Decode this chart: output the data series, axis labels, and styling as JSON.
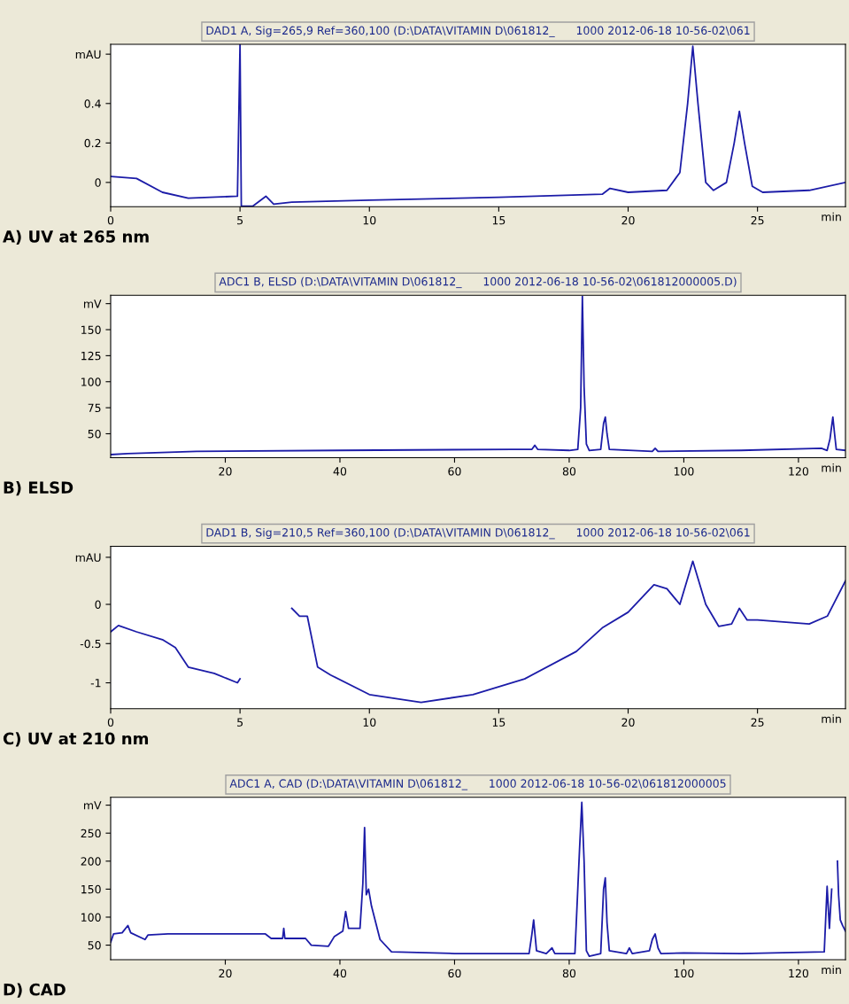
{
  "chart_data": [
    {
      "type": "line",
      "title": "DAD1 A, Sig=265,9 Ref=360,100 (D:\\DATA\\VITAMIN D\\061812_      1000 2012-06-18 10-56-02\\061",
      "xlabel": "min",
      "annotations": [
        "A) UV at 265 nm"
      ],
      "xlim": [
        0,
        28.4
      ],
      "ylim": [
        -0.123,
        0.7
      ],
      "xticks": [
        0,
        5,
        10,
        15,
        20,
        25
      ],
      "yticks": [
        0,
        0.2,
        0.4,
        {
          "value": 0.65,
          "label": "mAU"
        }
      ],
      "grid": false,
      "legend": false,
      "marker": "none",
      "line_style": "solid",
      "series": [
        {
          "color": "#1c1ca8",
          "x": [
            0,
            1,
            2,
            3,
            4.9,
            5.0,
            5.05,
            5.5,
            6.0,
            6.3,
            7,
            10,
            15,
            19,
            19.3,
            20,
            21.5,
            22.0,
            22.3,
            22.5,
            22.7,
            23.0,
            23.3,
            23.8,
            24.1,
            24.3,
            24.5,
            24.8,
            25.2,
            27,
            28.4
          ],
          "values": [
            0.03,
            0.02,
            -0.05,
            -0.08,
            -0.07,
            0.7,
            -0.12,
            -0.12,
            -0.07,
            -0.11,
            -0.1,
            -0.09,
            -0.075,
            -0.06,
            -0.03,
            -0.05,
            -0.04,
            0.05,
            0.4,
            0.69,
            0.4,
            0.0,
            -0.04,
            0.0,
            0.2,
            0.36,
            0.2,
            -0.02,
            -0.05,
            -0.04,
            0.0
          ]
        }
      ]
    },
    {
      "type": "line",
      "title": "ADC1 B, ELSD (D:\\DATA\\VITAMIN D\\061812_      1000 2012-06-18 10-56-02\\061812000005.D)",
      "xlabel": "min",
      "annotations": [
        "B) ELSD"
      ],
      "xlim": [
        0,
        128.2
      ],
      "ylim": [
        27,
        183
      ],
      "xticks": [
        20,
        40,
        60,
        80,
        100,
        120
      ],
      "yticks": [
        50,
        75,
        100,
        125,
        150,
        {
          "value": 175,
          "label": "mV"
        }
      ],
      "grid": false,
      "legend": false,
      "marker": "none",
      "line_style": "solid",
      "series": [
        {
          "color": "#1c1ca8",
          "x": [
            0,
            3,
            15,
            40,
            70,
            73.5,
            74,
            74.5,
            80,
            81.5,
            82,
            82.3,
            82.6,
            83,
            83.5,
            85.5,
            86,
            86.3,
            86.6,
            87,
            94.5,
            95,
            95.5,
            110,
            124,
            125,
            125.5,
            126,
            126.3,
            126.6,
            128.2
          ],
          "values": [
            30,
            31,
            33,
            34,
            35,
            35,
            39,
            35,
            34,
            35,
            75,
            182,
            95,
            40,
            34,
            35,
            60,
            66,
            50,
            35,
            33,
            36,
            33,
            34,
            36,
            34,
            45,
            66,
            50,
            35,
            34
          ]
        }
      ]
    },
    {
      "type": "line",
      "title": "DAD1 B, Sig=210,5 Ref=360,100 (D:\\DATA\\VITAMIN D\\061812_      1000 2012-06-18 10-56-02\\061",
      "xlabel": "min",
      "annotations": [
        "C) UV at 210 nm"
      ],
      "xlim": [
        0,
        28.4
      ],
      "ylim": [
        -1.33,
        0.74
      ],
      "xticks": [
        0,
        5,
        10,
        15,
        20,
        25
      ],
      "yticks": [
        -1,
        -0.5,
        0,
        {
          "value": 0.6,
          "label": "mAU"
        }
      ],
      "grid": false,
      "legend": false,
      "marker": "none",
      "line_style": "solid",
      "series": [
        {
          "color": "#1c1ca8",
          "x": [
            0,
            0.3,
            1,
            2,
            2.5,
            3,
            4,
            4.9,
            5.0,
            5.02,
            5.5,
            6.7,
            7,
            7.3,
            7.6,
            8,
            8.5,
            10,
            12,
            14,
            16,
            18,
            19,
            20,
            21,
            21.5,
            22,
            22.5,
            23,
            23.5,
            24,
            24.3,
            24.6,
            25,
            27,
            27.7,
            28.4
          ],
          "values": [
            -0.35,
            -0.27,
            -0.35,
            -0.45,
            -0.55,
            -0.8,
            -0.88,
            -1.0,
            -0.95,
            null,
            null,
            null,
            -0.05,
            -0.15,
            -0.15,
            -0.8,
            -0.9,
            -1.15,
            -1.25,
            -1.15,
            -0.95,
            -0.6,
            -0.3,
            -0.1,
            0.25,
            0.2,
            0.0,
            0.55,
            0.0,
            -0.28,
            -0.25,
            -0.05,
            -0.2,
            -0.2,
            -0.25,
            -0.15,
            0.3
          ]
        }
      ]
    },
    {
      "type": "line",
      "title": "ADC1 A, CAD (D:\\DATA\\VITAMIN D\\061812_      1000 2012-06-18 10-56-02\\061812000005",
      "xlabel": "min",
      "annotations": [
        "D) CAD"
      ],
      "xlim": [
        0,
        128.2
      ],
      "ylim": [
        24,
        314
      ],
      "xticks": [
        20,
        40,
        60,
        80,
        100,
        120
      ],
      "yticks": [
        50,
        100,
        150,
        200,
        250,
        {
          "value": 300,
          "label": "mV"
        }
      ],
      "grid": false,
      "legend": false,
      "marker": "none",
      "line_style": "solid",
      "series": [
        {
          "color": "#1c1ca8",
          "x": [
            0,
            0.5,
            2,
            3,
            3.5,
            6,
            6.5,
            10,
            27,
            28,
            30,
            30.2,
            30.4,
            34,
            35,
            38,
            39,
            40.5,
            41,
            41.5,
            43.5,
            44,
            44.3,
            44.6,
            45,
            45.5,
            47,
            49,
            60,
            73,
            73.5,
            73.8,
            74.3,
            76,
            77,
            77.5,
            81,
            81.8,
            82.2,
            82.6,
            83,
            83.5,
            85.5,
            86,
            86.3,
            86.6,
            87,
            90,
            90.5,
            91,
            94,
            94.5,
            95,
            95.5,
            96,
            100,
            110,
            124.5,
            125,
            125.4,
            125.8,
            126,
            126.4,
            126.8,
            127,
            127.3,
            127.7,
            128.2
          ],
          "values": [
            55,
            70,
            72,
            85,
            72,
            60,
            68,
            70,
            70,
            62,
            62,
            80,
            62,
            62,
            50,
            48,
            65,
            75,
            110,
            80,
            80,
            160,
            260,
            140,
            150,
            120,
            60,
            38,
            35,
            35,
            70,
            95,
            40,
            35,
            45,
            35,
            35,
            220,
            305,
            200,
            40,
            30,
            35,
            150,
            170,
            90,
            40,
            35,
            45,
            35,
            40,
            60,
            70,
            45,
            35,
            36,
            35,
            38,
            155,
            80,
            150,
            null,
            null,
            200,
            140,
            95,
            85,
            75
          ]
        }
      ]
    }
  ]
}
